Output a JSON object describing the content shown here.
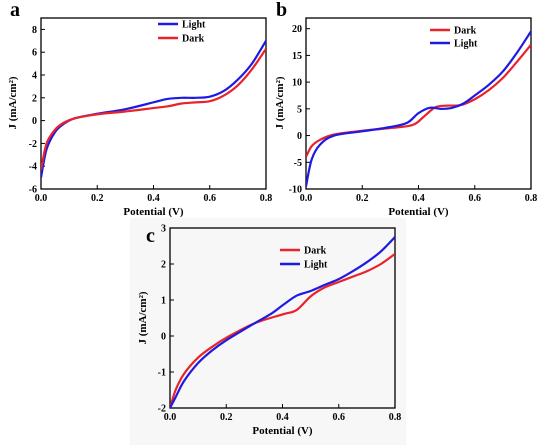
{
  "colors": {
    "dark": "#e8232a",
    "light": "#1d1be3"
  },
  "chart_data": [
    {
      "panel_label": "a",
      "type": "line",
      "xlabel": "Potential (V)",
      "ylabel": "J (mA/cm²)",
      "xlim": [
        0.0,
        0.8
      ],
      "ylim": [
        -6,
        9
      ],
      "xticks": [
        "0.0",
        "0.2",
        "0.4",
        "0.6",
        "0.8"
      ],
      "yticks": [
        "-6",
        "-4",
        "-2",
        "0",
        "2",
        "4",
        "6",
        "8"
      ],
      "legend_position": "top-right",
      "series": [
        {
          "name": "Light",
          "color_key": "light",
          "x": [
            0.0,
            0.02,
            0.05,
            0.08,
            0.12,
            0.2,
            0.3,
            0.4,
            0.45,
            0.5,
            0.55,
            0.6,
            0.65,
            0.7,
            0.75,
            0.8
          ],
          "y": [
            -5.0,
            -2.5,
            -1.0,
            -0.3,
            0.2,
            0.6,
            1.0,
            1.6,
            1.9,
            2.0,
            2.0,
            2.1,
            2.6,
            3.6,
            5.0,
            7.0
          ]
        },
        {
          "name": "Dark",
          "color_key": "dark",
          "x": [
            0.0,
            0.02,
            0.05,
            0.08,
            0.12,
            0.2,
            0.3,
            0.4,
            0.45,
            0.5,
            0.55,
            0.6,
            0.65,
            0.7,
            0.75,
            0.8
          ],
          "y": [
            -4.3,
            -2.0,
            -0.8,
            -0.2,
            0.2,
            0.55,
            0.8,
            1.1,
            1.25,
            1.5,
            1.6,
            1.7,
            2.2,
            3.1,
            4.5,
            6.3
          ]
        }
      ]
    },
    {
      "panel_label": "b",
      "type": "line",
      "xlabel": "Potential (V)",
      "ylabel": "J (mA/cm²)",
      "xlim": [
        0.0,
        0.8
      ],
      "ylim": [
        -10,
        22
      ],
      "xticks": [
        "0.0",
        "0.2",
        "0.4",
        "0.6",
        "0.8"
      ],
      "yticks": [
        "-10",
        "-5",
        "0",
        "5",
        "10",
        "15",
        "20"
      ],
      "legend_position": "top-left",
      "series": [
        {
          "name": "Dark",
          "color_key": "dark",
          "x": [
            0.0,
            0.02,
            0.05,
            0.1,
            0.2,
            0.3,
            0.38,
            0.42,
            0.46,
            0.5,
            0.55,
            0.6,
            0.65,
            0.7,
            0.75,
            0.8
          ],
          "y": [
            -4.0,
            -2.0,
            -0.8,
            0.2,
            0.9,
            1.4,
            2.0,
            3.6,
            5.3,
            5.6,
            5.7,
            6.8,
            8.5,
            10.8,
            13.8,
            17.0
          ]
        },
        {
          "name": "Light",
          "color_key": "light",
          "x": [
            0.0,
            0.02,
            0.05,
            0.1,
            0.2,
            0.3,
            0.36,
            0.4,
            0.44,
            0.48,
            0.52,
            0.56,
            0.6,
            0.65,
            0.7,
            0.75,
            0.8
          ],
          "y": [
            -9.5,
            -4.5,
            -1.7,
            0.0,
            0.8,
            1.6,
            2.4,
            4.2,
            5.2,
            5.0,
            5.2,
            6.0,
            7.5,
            9.5,
            12.0,
            15.5,
            19.5
          ]
        }
      ]
    },
    {
      "panel_label": "c",
      "type": "line",
      "xlabel": "Potential (V)",
      "ylabel": "J (mA/cm²)",
      "xlim": [
        0.0,
        0.8
      ],
      "ylim": [
        -2,
        3
      ],
      "xticks": [
        "0.0",
        "0.2",
        "0.4",
        "0.6",
        "0.8"
      ],
      "yticks": [
        "-2",
        "-1",
        "0",
        "1",
        "2",
        "3"
      ],
      "legend_position": "top-center",
      "series": [
        {
          "name": "Dark",
          "color_key": "dark",
          "x": [
            0.0,
            0.02,
            0.05,
            0.1,
            0.15,
            0.2,
            0.3,
            0.4,
            0.45,
            0.5,
            0.55,
            0.6,
            0.65,
            0.7,
            0.75,
            0.8
          ],
          "y": [
            -2.0,
            -1.5,
            -1.05,
            -0.6,
            -0.3,
            -0.05,
            0.35,
            0.6,
            0.72,
            1.1,
            1.35,
            1.5,
            1.65,
            1.8,
            2.0,
            2.28
          ]
        },
        {
          "name": "Light",
          "color_key": "light",
          "x": [
            0.0,
            0.02,
            0.05,
            0.1,
            0.15,
            0.2,
            0.3,
            0.36,
            0.4,
            0.45,
            0.5,
            0.55,
            0.6,
            0.65,
            0.7,
            0.75,
            0.8
          ],
          "y": [
            -2.0,
            -1.7,
            -1.25,
            -0.75,
            -0.4,
            -0.12,
            0.35,
            0.62,
            0.85,
            1.12,
            1.25,
            1.42,
            1.58,
            1.8,
            2.05,
            2.35,
            2.75
          ]
        }
      ]
    }
  ]
}
